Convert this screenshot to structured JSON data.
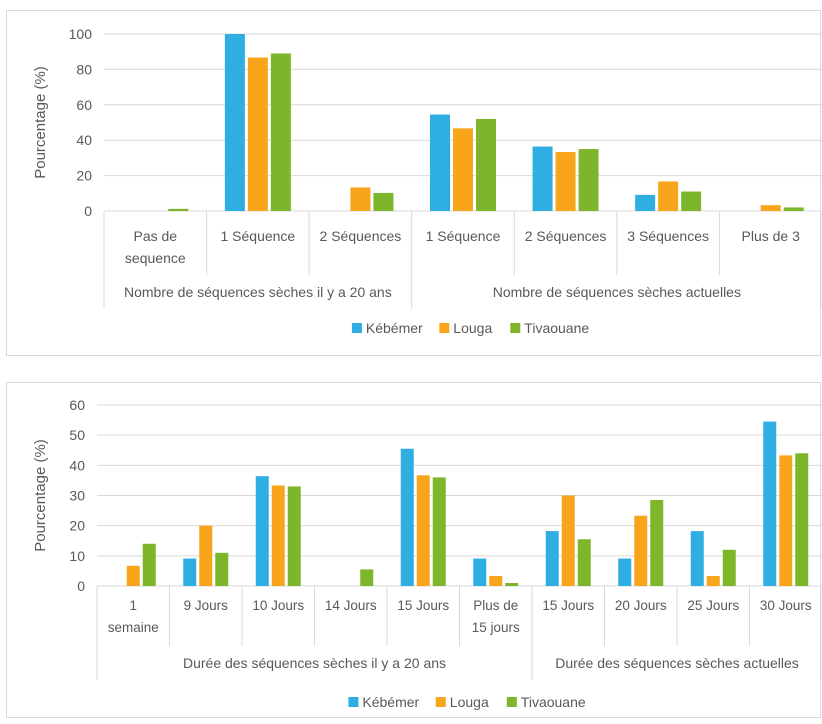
{
  "colors": {
    "Kébémer": "#2eaee3",
    "Louga": "#f8a51b",
    "Tivaouane": "#7db62a"
  },
  "chart_data": [
    {
      "type": "bar",
      "ylabel": "Pourcentage (%)",
      "ylim": [
        0,
        100
      ],
      "yticks": [
        0,
        20,
        40,
        60,
        80,
        100
      ],
      "grid": true,
      "legend_position": "bottom",
      "categories": [
        [
          "Pas de",
          "sequence"
        ],
        [
          "1 Séquence"
        ],
        [
          "2 Séquences"
        ],
        [
          "1 Séquence"
        ],
        [
          "2 Séquences"
        ],
        [
          "3 Séquences"
        ],
        [
          "Plus de 3"
        ]
      ],
      "groups": [
        {
          "label": "Nombre de séquences sèches il y a 20 ans",
          "span": 3
        },
        {
          "label": "Nombre de séquences sèches actuelles",
          "span": 4
        }
      ],
      "series": [
        {
          "name": "Kébémer",
          "values": [
            0,
            100,
            0,
            54.5,
            36.4,
            9.1,
            0
          ]
        },
        {
          "name": "Louga",
          "values": [
            0,
            86.7,
            13.3,
            46.7,
            33.3,
            16.7,
            3.3
          ]
        },
        {
          "name": "Tivaouane",
          "values": [
            1.2,
            89,
            10.2,
            52,
            35,
            11,
            2
          ]
        }
      ]
    },
    {
      "type": "bar",
      "ylabel": "Pourcentage (%)",
      "ylim": [
        0,
        60
      ],
      "yticks": [
        0,
        10,
        20,
        30,
        40,
        50,
        60
      ],
      "grid": true,
      "legend_position": "bottom",
      "categories": [
        [
          "1",
          "semaine"
        ],
        [
          "9 Jours"
        ],
        [
          "10 Jours"
        ],
        [
          "14 Jours"
        ],
        [
          "15 Jours"
        ],
        [
          "Plus de",
          "15 jours"
        ],
        [
          "15 Jours"
        ],
        [
          "20 Jours"
        ],
        [
          "25 Jours"
        ],
        [
          "30 Jours"
        ]
      ],
      "groups": [
        {
          "label": "Durée des séquences sèches il y a 20 ans",
          "span": 6
        },
        {
          "label": "Durée des séquences sèches actuelles",
          "span": 4
        }
      ],
      "series": [
        {
          "name": "Kébémer",
          "values": [
            0,
            9.1,
            36.4,
            0,
            45.5,
            9.1,
            18.2,
            9.1,
            18.2,
            54.5
          ]
        },
        {
          "name": "Louga",
          "values": [
            6.7,
            20,
            33.3,
            0,
            36.7,
            3.3,
            30,
            23.3,
            3.3,
            43.3
          ]
        },
        {
          "name": "Tivaouane",
          "values": [
            14,
            11,
            33,
            5.5,
            36,
            1,
            15.5,
            28.5,
            12,
            44
          ]
        }
      ]
    }
  ]
}
